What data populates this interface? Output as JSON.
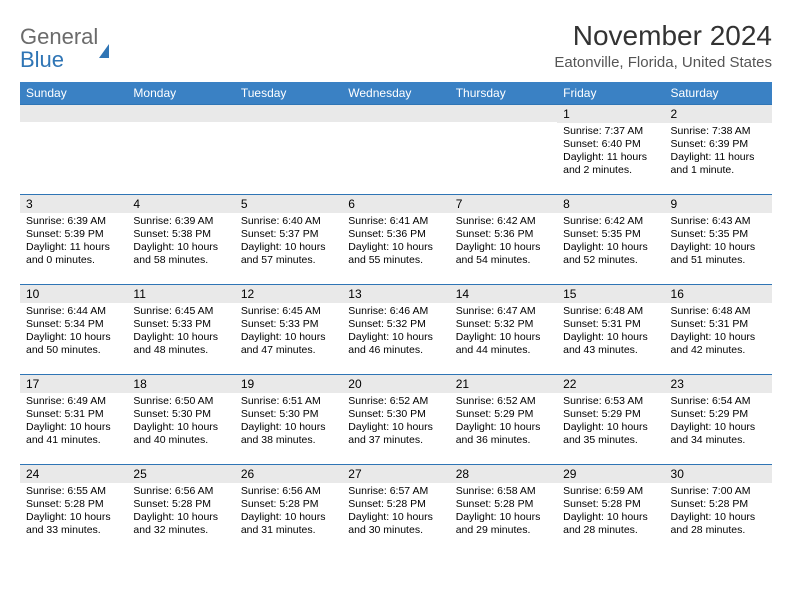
{
  "logo": {
    "word1": "General",
    "word2": "Blue"
  },
  "title": "November 2024",
  "location": "Eatonville, Florida, United States",
  "colors": {
    "brand": "#3a81c4",
    "accent": "#2f75b5",
    "gray": "#e9e9e9"
  },
  "dayHeaders": [
    "Sunday",
    "Monday",
    "Tuesday",
    "Wednesday",
    "Thursday",
    "Friday",
    "Saturday"
  ],
  "weeks": [
    [
      null,
      null,
      null,
      null,
      null,
      {
        "n": "1",
        "sr": "Sunrise: 7:37 AM",
        "ss": "Sunset: 6:40 PM",
        "dl": "Daylight: 11 hours and 2 minutes."
      },
      {
        "n": "2",
        "sr": "Sunrise: 7:38 AM",
        "ss": "Sunset: 6:39 PM",
        "dl": "Daylight: 11 hours and 1 minute."
      }
    ],
    [
      {
        "n": "3",
        "sr": "Sunrise: 6:39 AM",
        "ss": "Sunset: 5:39 PM",
        "dl": "Daylight: 11 hours and 0 minutes."
      },
      {
        "n": "4",
        "sr": "Sunrise: 6:39 AM",
        "ss": "Sunset: 5:38 PM",
        "dl": "Daylight: 10 hours and 58 minutes."
      },
      {
        "n": "5",
        "sr": "Sunrise: 6:40 AM",
        "ss": "Sunset: 5:37 PM",
        "dl": "Daylight: 10 hours and 57 minutes."
      },
      {
        "n": "6",
        "sr": "Sunrise: 6:41 AM",
        "ss": "Sunset: 5:36 PM",
        "dl": "Daylight: 10 hours and 55 minutes."
      },
      {
        "n": "7",
        "sr": "Sunrise: 6:42 AM",
        "ss": "Sunset: 5:36 PM",
        "dl": "Daylight: 10 hours and 54 minutes."
      },
      {
        "n": "8",
        "sr": "Sunrise: 6:42 AM",
        "ss": "Sunset: 5:35 PM",
        "dl": "Daylight: 10 hours and 52 minutes."
      },
      {
        "n": "9",
        "sr": "Sunrise: 6:43 AM",
        "ss": "Sunset: 5:35 PM",
        "dl": "Daylight: 10 hours and 51 minutes."
      }
    ],
    [
      {
        "n": "10",
        "sr": "Sunrise: 6:44 AM",
        "ss": "Sunset: 5:34 PM",
        "dl": "Daylight: 10 hours and 50 minutes."
      },
      {
        "n": "11",
        "sr": "Sunrise: 6:45 AM",
        "ss": "Sunset: 5:33 PM",
        "dl": "Daylight: 10 hours and 48 minutes."
      },
      {
        "n": "12",
        "sr": "Sunrise: 6:45 AM",
        "ss": "Sunset: 5:33 PM",
        "dl": "Daylight: 10 hours and 47 minutes."
      },
      {
        "n": "13",
        "sr": "Sunrise: 6:46 AM",
        "ss": "Sunset: 5:32 PM",
        "dl": "Daylight: 10 hours and 46 minutes."
      },
      {
        "n": "14",
        "sr": "Sunrise: 6:47 AM",
        "ss": "Sunset: 5:32 PM",
        "dl": "Daylight: 10 hours and 44 minutes."
      },
      {
        "n": "15",
        "sr": "Sunrise: 6:48 AM",
        "ss": "Sunset: 5:31 PM",
        "dl": "Daylight: 10 hours and 43 minutes."
      },
      {
        "n": "16",
        "sr": "Sunrise: 6:48 AM",
        "ss": "Sunset: 5:31 PM",
        "dl": "Daylight: 10 hours and 42 minutes."
      }
    ],
    [
      {
        "n": "17",
        "sr": "Sunrise: 6:49 AM",
        "ss": "Sunset: 5:31 PM",
        "dl": "Daylight: 10 hours and 41 minutes."
      },
      {
        "n": "18",
        "sr": "Sunrise: 6:50 AM",
        "ss": "Sunset: 5:30 PM",
        "dl": "Daylight: 10 hours and 40 minutes."
      },
      {
        "n": "19",
        "sr": "Sunrise: 6:51 AM",
        "ss": "Sunset: 5:30 PM",
        "dl": "Daylight: 10 hours and 38 minutes."
      },
      {
        "n": "20",
        "sr": "Sunrise: 6:52 AM",
        "ss": "Sunset: 5:30 PM",
        "dl": "Daylight: 10 hours and 37 minutes."
      },
      {
        "n": "21",
        "sr": "Sunrise: 6:52 AM",
        "ss": "Sunset: 5:29 PM",
        "dl": "Daylight: 10 hours and 36 minutes."
      },
      {
        "n": "22",
        "sr": "Sunrise: 6:53 AM",
        "ss": "Sunset: 5:29 PM",
        "dl": "Daylight: 10 hours and 35 minutes."
      },
      {
        "n": "23",
        "sr": "Sunrise: 6:54 AM",
        "ss": "Sunset: 5:29 PM",
        "dl": "Daylight: 10 hours and 34 minutes."
      }
    ],
    [
      {
        "n": "24",
        "sr": "Sunrise: 6:55 AM",
        "ss": "Sunset: 5:28 PM",
        "dl": "Daylight: 10 hours and 33 minutes."
      },
      {
        "n": "25",
        "sr": "Sunrise: 6:56 AM",
        "ss": "Sunset: 5:28 PM",
        "dl": "Daylight: 10 hours and 32 minutes."
      },
      {
        "n": "26",
        "sr": "Sunrise: 6:56 AM",
        "ss": "Sunset: 5:28 PM",
        "dl": "Daylight: 10 hours and 31 minutes."
      },
      {
        "n": "27",
        "sr": "Sunrise: 6:57 AM",
        "ss": "Sunset: 5:28 PM",
        "dl": "Daylight: 10 hours and 30 minutes."
      },
      {
        "n": "28",
        "sr": "Sunrise: 6:58 AM",
        "ss": "Sunset: 5:28 PM",
        "dl": "Daylight: 10 hours and 29 minutes."
      },
      {
        "n": "29",
        "sr": "Sunrise: 6:59 AM",
        "ss": "Sunset: 5:28 PM",
        "dl": "Daylight: 10 hours and 28 minutes."
      },
      {
        "n": "30",
        "sr": "Sunrise: 7:00 AM",
        "ss": "Sunset: 5:28 PM",
        "dl": "Daylight: 10 hours and 28 minutes."
      }
    ]
  ]
}
